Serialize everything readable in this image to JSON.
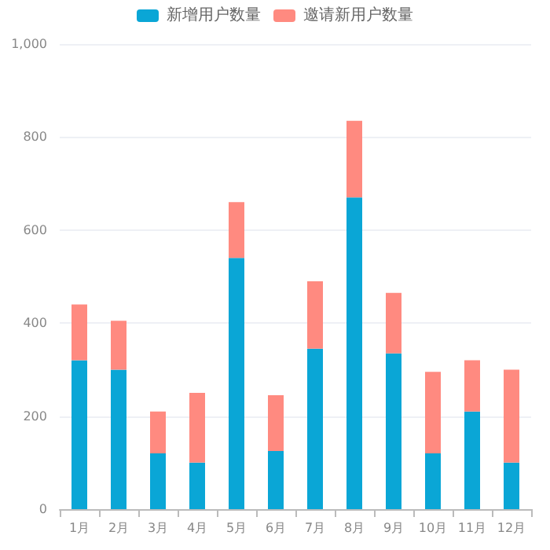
{
  "chart_data": {
    "type": "bar",
    "stacked": true,
    "categories": [
      "1月",
      "2月",
      "3月",
      "4月",
      "5月",
      "6月",
      "7月",
      "8月",
      "9月",
      "10月",
      "11月",
      "12月"
    ],
    "series": [
      {
        "name": "新增用户数量",
        "color": "#0aa6d6",
        "values": [
          320,
          300,
          120,
          100,
          540,
          125,
          345,
          670,
          335,
          120,
          210,
          100
        ]
      },
      {
        "name": "邀请新用户数量",
        "color": "#ff8a80",
        "values": [
          120,
          105,
          90,
          150,
          120,
          120,
          145,
          165,
          130,
          175,
          110,
          200
        ]
      }
    ],
    "ylim": [
      0,
      1000
    ],
    "yticks": [
      0,
      200,
      400,
      600,
      800,
      {
        "value": 1000,
        "label": "1,000"
      }
    ],
    "grid": "y",
    "legend": "top"
  }
}
